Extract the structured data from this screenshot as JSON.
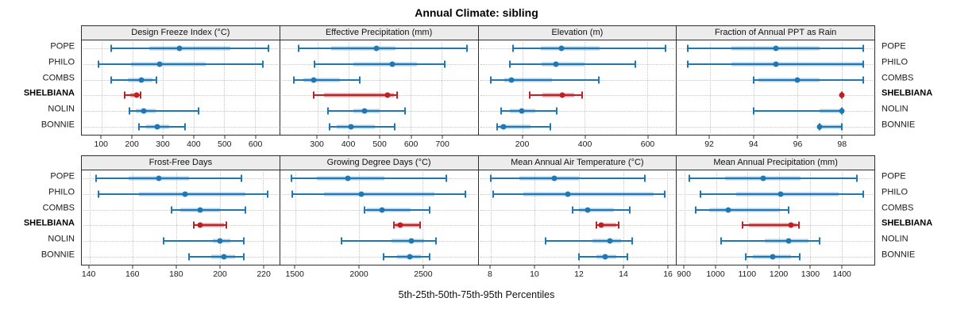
{
  "colors": {
    "blue": "#1f78b4",
    "blue_band": "rgba(31,120,180,0.35)",
    "red": "#bf2026",
    "red_band": "rgba(191,32,38,0.45)",
    "strip_bg": "#ececec",
    "grid": "#c6c6c6",
    "panel_border": "#2e2e2e"
  },
  "chart_data": {
    "type": "scatter",
    "variant": "five-number-summary dotplot with whiskers (lattice-style trellis, 2 rows x 4 columns)",
    "title": "Annual Climate: sibling",
    "xlabel": "5th-25th-50th-75th-95th Percentiles",
    "percentiles": [
      "5th",
      "25th",
      "50th",
      "75th",
      "95th"
    ],
    "sites": [
      "POPE",
      "PHILO",
      "COMBS",
      "SHELBIANA",
      "NOLIN",
      "BONNIE"
    ],
    "highlight_site": "SHELBIANA",
    "legend_position": "none",
    "grid": "dotted",
    "panels": [
      {
        "title": "Design Freeze Index (°C)",
        "row": 0,
        "ticks": [
          100,
          200,
          300,
          400,
          500,
          600
        ],
        "domain": [
          35,
          680
        ],
        "series": [
          {
            "site": "POPE",
            "values": [
              130,
              255,
              355,
              520,
              645
            ]
          },
          {
            "site": "PHILO",
            "values": [
              90,
              195,
              290,
              440,
              627
            ]
          },
          {
            "site": "COMBS",
            "values": [
              130,
              185,
              230,
              265,
              280
            ]
          },
          {
            "site": "SHELBIANA",
            "values": [
              175,
              192,
              215,
              222,
              227
            ]
          },
          {
            "site": "NOLIN",
            "values": [
              190,
              212,
              237,
              276,
              417
            ]
          },
          {
            "site": "BONNIE",
            "values": [
              222,
              246,
              282,
              319,
              372
            ]
          }
        ]
      },
      {
        "title": "Effective Precipitation (mm)",
        "row": 0,
        "ticks": [
          300,
          400,
          500,
          600,
          700
        ],
        "domain": [
          180,
          815
        ],
        "series": [
          {
            "site": "POPE",
            "values": [
              240,
              345,
              490,
              550,
              780
            ]
          },
          {
            "site": "PHILO",
            "values": [
              290,
              415,
              540,
              620,
              710
            ]
          },
          {
            "site": "COMBS",
            "values": [
              225,
              255,
              288,
              372,
              437
            ]
          },
          {
            "site": "SHELBIANA",
            "values": [
              288,
              320,
              524,
              546,
              556
            ]
          },
          {
            "site": "NOLIN",
            "values": [
              335,
              415,
              450,
              500,
              582
            ]
          },
          {
            "site": "BONNIE",
            "values": [
              338,
              362,
              407,
              484,
              548
            ]
          }
        ]
      },
      {
        "title": "Elevation (m)",
        "row": 0,
        "ticks": [
          200,
          400,
          600
        ],
        "domain": [
          58,
          693
        ],
        "series": [
          {
            "site": "POPE",
            "values": [
              170,
              258,
              324,
              447,
              658
            ]
          },
          {
            "site": "PHILO",
            "values": [
              158,
              260,
              306,
              398,
              563
            ]
          },
          {
            "site": "COMBS",
            "values": [
              97,
              142,
              164,
              293,
              445
            ]
          },
          {
            "site": "SHELBIANA",
            "values": [
              222,
              263,
              327,
              366,
              390
            ]
          },
          {
            "site": "NOLIN",
            "values": [
              130,
              160,
              196,
              241,
              310
            ]
          },
          {
            "site": "BONNIE",
            "values": [
              117,
              126,
              138,
              224,
              288
            ]
          }
        ]
      },
      {
        "title": "Fraction of Annual PPT as Rain",
        "row": 0,
        "ticks": [
          92,
          94,
          96,
          98
        ],
        "domain": [
          90.5,
          99.5
        ],
        "series": [
          {
            "site": "POPE",
            "values": [
              91,
              93,
              95,
              97,
              99
            ]
          },
          {
            "site": "PHILO",
            "values": [
              91,
              93,
              95,
              99,
              99
            ]
          },
          {
            "site": "COMBS",
            "values": [
              94,
              94.2,
              96,
              97,
              99
            ]
          },
          {
            "site": "SHELBIANA",
            "values": [
              98,
              98,
              98,
              98,
              98
            ]
          },
          {
            "site": "NOLIN",
            "values": [
              94,
              97,
              98,
              98,
              98
            ]
          },
          {
            "site": "BONNIE",
            "values": [
              97,
              97,
              97,
              98,
              98
            ]
          }
        ]
      },
      {
        "title": "Frost-Free Days",
        "row": 1,
        "ticks": [
          140,
          160,
          180,
          200,
          220
        ],
        "domain": [
          136.5,
          227.5
        ],
        "series": [
          {
            "site": "POPE",
            "values": [
              143,
              158,
              172,
              186,
              210
            ]
          },
          {
            "site": "PHILO",
            "values": [
              144,
              163,
              184,
              212,
              222
            ]
          },
          {
            "site": "COMBS",
            "values": [
              178,
              182,
              191,
              200,
              212
            ]
          },
          {
            "site": "SHELBIANA",
            "values": [
              188,
              190,
              191,
              202,
              203
            ]
          },
          {
            "site": "NOLIN",
            "values": [
              174,
              197,
              200,
              205,
              211
            ]
          },
          {
            "site": "BONNIE",
            "values": [
              186,
              196,
              202,
              207,
              211
            ]
          }
        ]
      },
      {
        "title": "Growing Degree Days (°C)",
        "row": 1,
        "ticks": [
          1500,
          2000,
          2500
        ],
        "domain": [
          1380,
          2930
        ],
        "series": [
          {
            "site": "POPE",
            "values": [
              1470,
              1670,
              1910,
              2195,
              2685
            ]
          },
          {
            "site": "PHILO",
            "values": [
              1475,
              1725,
              2015,
              2590,
              2835
            ]
          },
          {
            "site": "COMBS",
            "values": [
              2040,
              2060,
              2180,
              2405,
              2550
            ]
          },
          {
            "site": "SHELBIANA",
            "values": [
              2270,
              2285,
              2325,
              2470,
              2480
            ]
          },
          {
            "site": "NOLIN",
            "values": [
              1860,
              2255,
              2410,
              2510,
              2605
            ]
          },
          {
            "site": "BONNIE",
            "values": [
              2190,
              2300,
              2395,
              2485,
              2555
            ]
          }
        ]
      },
      {
        "title": "Mean Annual Air Temperature (°C)",
        "row": 1,
        "ticks": [
          8,
          10,
          12,
          14,
          16
        ],
        "domain": [
          7.45,
          16.4
        ],
        "series": [
          {
            "site": "POPE",
            "values": [
              8.0,
              9.3,
              10.9,
              12.0,
              15.0
            ]
          },
          {
            "site": "PHILO",
            "values": [
              8.1,
              9.5,
              11.5,
              15.4,
              15.9
            ]
          },
          {
            "site": "COMBS",
            "values": [
              11.7,
              12.0,
              12.4,
              13.6,
              14.3
            ]
          },
          {
            "site": "SHELBIANA",
            "values": [
              12.8,
              12.9,
              13.0,
              13.7,
              13.8
            ]
          },
          {
            "site": "NOLIN",
            "values": [
              10.5,
              12.6,
              13.4,
              13.9,
              14.4
            ]
          },
          {
            "site": "BONNIE",
            "values": [
              12.0,
              12.8,
              13.2,
              13.7,
              14.2
            ]
          }
        ]
      },
      {
        "title": "Mean Annual Precipitation (mm)",
        "row": 1,
        "ticks": [
          900,
          1000,
          1100,
          1200,
          1300,
          1400
        ],
        "domain": [
          875,
          1505
        ],
        "series": [
          {
            "site": "POPE",
            "values": [
              915,
              1030,
              1150,
              1270,
              1450
            ]
          },
          {
            "site": "PHILO",
            "values": [
              950,
              1065,
              1205,
              1390,
              1470
            ]
          },
          {
            "site": "COMBS",
            "values": [
              935,
              977,
              1038,
              1203,
              1232
            ]
          },
          {
            "site": "SHELBIANA",
            "values": [
              1085,
              1105,
              1238,
              1258,
              1265
            ]
          },
          {
            "site": "NOLIN",
            "values": [
              1015,
              1155,
              1232,
              1295,
              1330
            ]
          },
          {
            "site": "BONNIE",
            "values": [
              1095,
              1118,
              1180,
              1238,
              1268
            ]
          }
        ]
      }
    ]
  }
}
